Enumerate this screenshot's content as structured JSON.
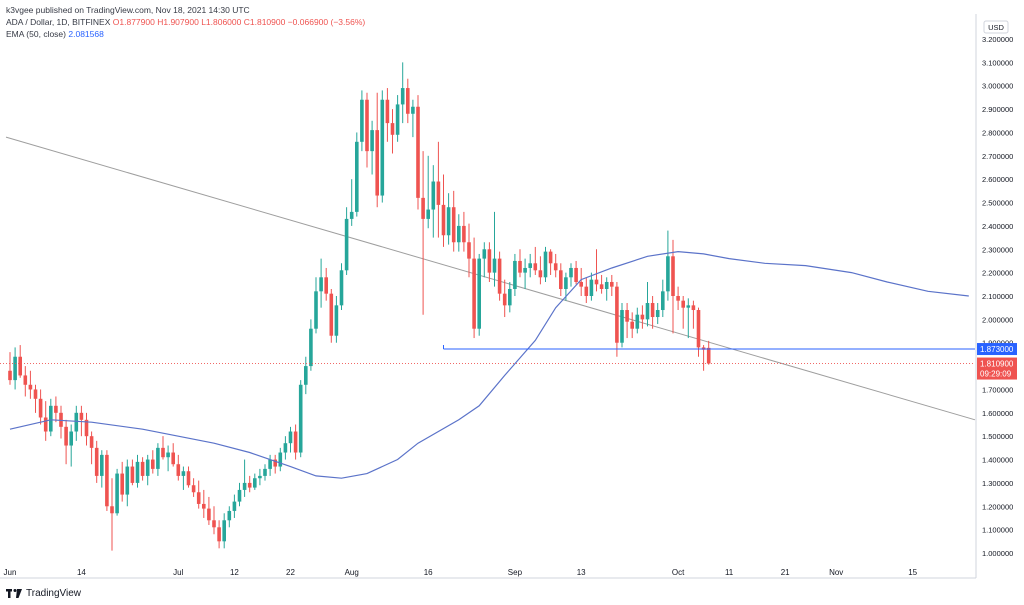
{
  "header": {
    "published": "k3vgee published on TradingView.com, Nov 18, 2021 14:30 UTC",
    "symbol": "ADA / Dollar, 1D, BITFINEX",
    "open": "O1.877900",
    "high": "H1.907900",
    "low": "L1.806000",
    "close": "C1.810900",
    "change": "−0.066900 (−3.56%)",
    "ema_label": "EMA (50, close)",
    "ema_value": "2.081568"
  },
  "axis": {
    "currency": "USD",
    "y_ticks": [
      "3.200000",
      "3.100000",
      "3.000000",
      "2.900000",
      "2.800000",
      "2.700000",
      "2.600000",
      "2.500000",
      "2.400000",
      "2.300000",
      "2.200000",
      "2.100000",
      "2.000000",
      "1.900000",
      "1.700000",
      "1.600000",
      "1.500000",
      "1.400000",
      "1.300000",
      "1.200000",
      "1.100000",
      "1.000000"
    ],
    "x_ticks": [
      "Jun",
      "14",
      "Jul",
      "12",
      "22",
      "Aug",
      "16",
      "Sep",
      "13",
      "Oct",
      "11",
      "21",
      "Nov",
      "15"
    ]
  },
  "price_labels": {
    "level": "1.873000",
    "last": "1.810900",
    "countdown": "09:29:09"
  },
  "footer": {
    "brand": "TradingView"
  },
  "colors": {
    "up": "#26a69a",
    "down": "#ef5350",
    "ema": "#5b73c9",
    "level": "#2962ff",
    "trend": "#9e9e9e"
  },
  "chart_data": {
    "type": "candlestick",
    "symbol": "ADA / Dollar",
    "interval": "1D",
    "ylim": [
      1.0,
      3.2
    ],
    "candles": [
      [
        1.78,
        1.86,
        1.72,
        1.74
      ],
      [
        1.74,
        1.88,
        1.7,
        1.84
      ],
      [
        1.84,
        1.89,
        1.75,
        1.76
      ],
      [
        1.76,
        1.8,
        1.67,
        1.72
      ],
      [
        1.72,
        1.78,
        1.66,
        1.7
      ],
      [
        1.7,
        1.72,
        1.6,
        1.66
      ],
      [
        1.66,
        1.7,
        1.55,
        1.58
      ],
      [
        1.58,
        1.65,
        1.48,
        1.52
      ],
      [
        1.52,
        1.66,
        1.5,
        1.63
      ],
      [
        1.63,
        1.67,
        1.56,
        1.6
      ],
      [
        1.6,
        1.63,
        1.49,
        1.54
      ],
      [
        1.54,
        1.57,
        1.38,
        1.46
      ],
      [
        1.46,
        1.55,
        1.37,
        1.52
      ],
      [
        1.52,
        1.63,
        1.48,
        1.6
      ],
      [
        1.6,
        1.63,
        1.5,
        1.57
      ],
      [
        1.57,
        1.6,
        1.46,
        1.5
      ],
      [
        1.5,
        1.52,
        1.38,
        1.45
      ],
      [
        1.45,
        1.48,
        1.3,
        1.33
      ],
      [
        1.33,
        1.44,
        1.28,
        1.42
      ],
      [
        1.42,
        1.44,
        1.18,
        1.2
      ],
      [
        1.2,
        1.32,
        1.01,
        1.17
      ],
      [
        1.17,
        1.36,
        1.16,
        1.34
      ],
      [
        1.34,
        1.39,
        1.22,
        1.25
      ],
      [
        1.25,
        1.4,
        1.2,
        1.37
      ],
      [
        1.37,
        1.4,
        1.29,
        1.3
      ],
      [
        1.3,
        1.42,
        1.28,
        1.39
      ],
      [
        1.39,
        1.41,
        1.31,
        1.33
      ],
      [
        1.33,
        1.42,
        1.29,
        1.4
      ],
      [
        1.4,
        1.44,
        1.34,
        1.36
      ],
      [
        1.36,
        1.47,
        1.33,
        1.45
      ],
      [
        1.45,
        1.5,
        1.4,
        1.41
      ],
      [
        1.41,
        1.46,
        1.35,
        1.43
      ],
      [
        1.43,
        1.47,
        1.37,
        1.38
      ],
      [
        1.38,
        1.42,
        1.31,
        1.33
      ],
      [
        1.33,
        1.37,
        1.27,
        1.35
      ],
      [
        1.35,
        1.37,
        1.28,
        1.29
      ],
      [
        1.29,
        1.32,
        1.24,
        1.26
      ],
      [
        1.26,
        1.31,
        1.19,
        1.21
      ],
      [
        1.21,
        1.27,
        1.15,
        1.19
      ],
      [
        1.19,
        1.24,
        1.12,
        1.14
      ],
      [
        1.14,
        1.2,
        1.08,
        1.11
      ],
      [
        1.11,
        1.14,
        1.02,
        1.05
      ],
      [
        1.05,
        1.17,
        1.02,
        1.14
      ],
      [
        1.14,
        1.2,
        1.11,
        1.18
      ],
      [
        1.18,
        1.25,
        1.15,
        1.22
      ],
      [
        1.22,
        1.3,
        1.2,
        1.27
      ],
      [
        1.27,
        1.4,
        1.24,
        1.3
      ],
      [
        1.3,
        1.33,
        1.26,
        1.28
      ],
      [
        1.28,
        1.34,
        1.27,
        1.32
      ],
      [
        1.32,
        1.36,
        1.29,
        1.33
      ],
      [
        1.33,
        1.38,
        1.31,
        1.36
      ],
      [
        1.36,
        1.42,
        1.33,
        1.4
      ],
      [
        1.4,
        1.42,
        1.34,
        1.37
      ],
      [
        1.37,
        1.45,
        1.35,
        1.43
      ],
      [
        1.43,
        1.5,
        1.4,
        1.47
      ],
      [
        1.47,
        1.54,
        1.43,
        1.52
      ],
      [
        1.52,
        1.55,
        1.4,
        1.43
      ],
      [
        1.43,
        1.74,
        1.41,
        1.72
      ],
      [
        1.72,
        1.84,
        1.68,
        1.8
      ],
      [
        1.8,
        2.0,
        1.78,
        1.96
      ],
      [
        1.96,
        2.18,
        1.94,
        2.12
      ],
      [
        2.12,
        2.26,
        2.05,
        2.18
      ],
      [
        2.18,
        2.22,
        2.08,
        2.11
      ],
      [
        2.11,
        2.13,
        1.9,
        1.93
      ],
      [
        1.93,
        2.1,
        1.9,
        2.06
      ],
      [
        2.06,
        2.24,
        2.04,
        2.21
      ],
      [
        2.21,
        2.48,
        2.19,
        2.43
      ],
      [
        2.43,
        2.6,
        2.4,
        2.46
      ],
      [
        2.46,
        2.8,
        2.44,
        2.76
      ],
      [
        2.76,
        2.98,
        2.72,
        2.94
      ],
      [
        2.94,
        2.97,
        2.65,
        2.72
      ],
      [
        2.72,
        2.85,
        2.62,
        2.81
      ],
      [
        2.81,
        2.97,
        2.48,
        2.53
      ],
      [
        2.53,
        2.98,
        2.5,
        2.94
      ],
      [
        2.94,
        2.99,
        2.76,
        2.84
      ],
      [
        2.84,
        2.9,
        2.71,
        2.79
      ],
      [
        2.79,
        2.96,
        2.76,
        2.92
      ],
      [
        2.92,
        3.1,
        2.84,
        2.99
      ],
      [
        2.99,
        3.03,
        2.84,
        2.88
      ],
      [
        2.88,
        2.94,
        2.78,
        2.91
      ],
      [
        2.91,
        2.96,
        2.47,
        2.52
      ],
      [
        2.52,
        2.72,
        2.02,
        2.43
      ],
      [
        2.43,
        2.7,
        2.39,
        2.47
      ],
      [
        2.47,
        2.66,
        2.35,
        2.59
      ],
      [
        2.59,
        2.76,
        2.35,
        2.49
      ],
      [
        2.49,
        2.62,
        2.31,
        2.36
      ],
      [
        2.36,
        2.54,
        2.32,
        2.48
      ],
      [
        2.48,
        2.55,
        2.29,
        2.33
      ],
      [
        2.33,
        2.45,
        2.29,
        2.4
      ],
      [
        2.4,
        2.46,
        2.29,
        2.33
      ],
      [
        2.33,
        2.41,
        2.18,
        2.26
      ],
      [
        2.26,
        2.35,
        1.92,
        1.96
      ],
      [
        1.96,
        2.28,
        1.93,
        2.26
      ],
      [
        2.26,
        2.33,
        2.18,
        2.3
      ],
      [
        2.3,
        2.33,
        2.16,
        2.2
      ],
      [
        2.2,
        2.46,
        2.14,
        2.26
      ],
      [
        2.26,
        2.29,
        2.08,
        2.11
      ],
      [
        2.11,
        2.17,
        2.01,
        2.06
      ],
      [
        2.06,
        2.16,
        2.03,
        2.13
      ],
      [
        2.13,
        2.28,
        2.1,
        2.25
      ],
      [
        2.25,
        2.3,
        2.18,
        2.2
      ],
      [
        2.2,
        2.26,
        2.13,
        2.22
      ],
      [
        2.22,
        2.28,
        2.18,
        2.24
      ],
      [
        2.24,
        2.31,
        2.19,
        2.21
      ],
      [
        2.21,
        2.27,
        2.15,
        2.18
      ],
      [
        2.18,
        2.31,
        2.16,
        2.29
      ],
      [
        2.29,
        2.3,
        2.19,
        2.24
      ],
      [
        2.24,
        2.28,
        2.18,
        2.21
      ],
      [
        2.21,
        2.24,
        2.1,
        2.13
      ],
      [
        2.13,
        2.2,
        2.08,
        2.18
      ],
      [
        2.18,
        2.24,
        2.14,
        2.22
      ],
      [
        2.22,
        2.25,
        2.15,
        2.16
      ],
      [
        2.16,
        2.22,
        2.1,
        2.14
      ],
      [
        2.14,
        2.18,
        2.07,
        2.1
      ],
      [
        2.1,
        2.2,
        2.08,
        2.17
      ],
      [
        2.17,
        2.3,
        2.12,
        2.15
      ],
      [
        2.15,
        2.19,
        2.11,
        2.13
      ],
      [
        2.13,
        2.18,
        2.08,
        2.16
      ],
      [
        2.16,
        2.19,
        2.1,
        2.14
      ],
      [
        2.14,
        2.16,
        1.84,
        1.9
      ],
      [
        1.9,
        2.07,
        1.88,
        2.04
      ],
      [
        2.04,
        2.07,
        1.92,
        1.99
      ],
      [
        1.99,
        2.03,
        1.92,
        1.96
      ],
      [
        1.96,
        2.05,
        1.94,
        2.02
      ],
      [
        2.02,
        2.06,
        1.96,
        2.0
      ],
      [
        2.0,
        2.16,
        1.97,
        2.07
      ],
      [
        2.07,
        2.1,
        1.96,
        2.01
      ],
      [
        2.01,
        2.07,
        1.98,
        2.04
      ],
      [
        2.04,
        2.17,
        2.01,
        2.12
      ],
      [
        2.12,
        2.38,
        2.08,
        2.27
      ],
      [
        2.27,
        2.34,
        1.94,
        2.1
      ],
      [
        2.1,
        2.14,
        2.04,
        2.08
      ],
      [
        2.08,
        2.1,
        1.96,
        2.05
      ],
      [
        2.05,
        2.09,
        1.92,
        2.06
      ],
      [
        2.06,
        2.08,
        1.96,
        2.04
      ],
      [
        2.04,
        2.05,
        1.84,
        1.88
      ],
      [
        1.88,
        1.89,
        1.78,
        1.87
      ],
      [
        1.878,
        1.908,
        1.806,
        1.811
      ]
    ],
    "ema50_points": [
      [
        0,
        1.53
      ],
      [
        8,
        1.57
      ],
      [
        16,
        1.56
      ],
      [
        26,
        1.53
      ],
      [
        40,
        1.47
      ],
      [
        47,
        1.43
      ],
      [
        55,
        1.37
      ],
      [
        60,
        1.33
      ],
      [
        65,
        1.32
      ],
      [
        70,
        1.34
      ],
      [
        76,
        1.4
      ],
      [
        80,
        1.47
      ],
      [
        88,
        1.57
      ],
      [
        92,
        1.63
      ],
      [
        97,
        1.76
      ],
      [
        103,
        1.91
      ],
      [
        107,
        2.05
      ],
      [
        112,
        2.17
      ],
      [
        118,
        2.22
      ],
      [
        125,
        2.27
      ],
      [
        131,
        2.29
      ],
      [
        136,
        2.28
      ],
      [
        141,
        2.26
      ],
      [
        148,
        2.24
      ],
      [
        156,
        2.23
      ],
      [
        165,
        2.2
      ],
      [
        172,
        2.16
      ],
      [
        180,
        2.12
      ],
      [
        188,
        2.1
      ]
    ],
    "horizontal_level": 1.873,
    "last_price": 1.8109,
    "trendline": {
      "start_price": 2.78,
      "end_price": 1.57
    }
  }
}
